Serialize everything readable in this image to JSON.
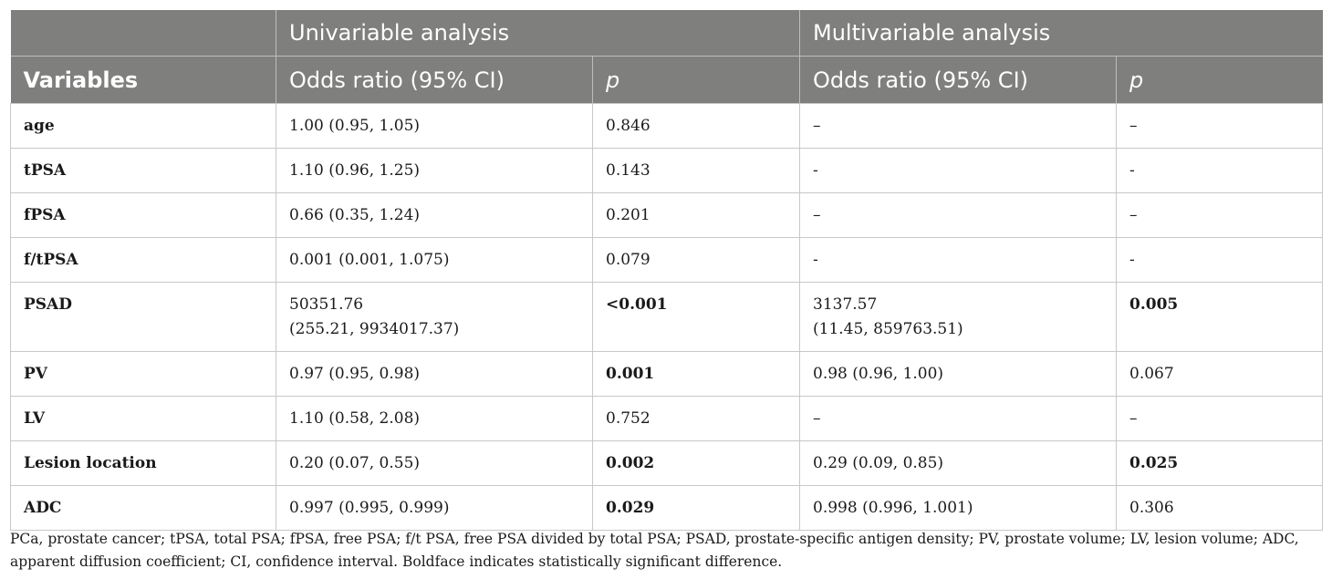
{
  "header": {
    "group1": "Univariable analysis",
    "group2": "Multivariable analysis",
    "variables": "Variables",
    "or1": "Odds ratio (95% CI)",
    "p1": "p",
    "or2": "Odds ratio (95% CI)",
    "p2": "p"
  },
  "rows": [
    {
      "variable": "age",
      "uni_or": "1.00 (0.95, 1.05)",
      "uni_or2": "",
      "uni_p": "0.846",
      "multi_or": "–",
      "multi_or2": "",
      "multi_p": "–"
    },
    {
      "variable": "tPSA",
      "uni_or": "1.10 (0.96, 1.25)",
      "uni_or2": "",
      "uni_p": "0.143",
      "multi_or": "-",
      "multi_or2": "",
      "multi_p": "-"
    },
    {
      "variable": "fPSA",
      "uni_or": "0.66 (0.35, 1.24)",
      "uni_or2": "",
      "uni_p": "0.201",
      "multi_or": "–",
      "multi_or2": "",
      "multi_p": "–"
    },
    {
      "variable": "f/tPSA",
      "uni_or": "0.001 (0.001, 1.075)",
      "uni_or2": "",
      "uni_p": "0.079",
      "multi_or": "-",
      "multi_or2": "",
      "multi_p": "-"
    },
    {
      "variable": "PSAD",
      "uni_or": "50351.76",
      "uni_or2": "(255.21, 9934017.37)",
      "uni_p": "<0.001",
      "multi_or": "3137.57",
      "multi_or2": "(11.45, 859763.51)",
      "multi_p": "0.005"
    },
    {
      "variable": "PV",
      "uni_or": "0.97 (0.95, 0.98)",
      "uni_or2": "",
      "uni_p": "0.001",
      "multi_or": "0.98 (0.96, 1.00)",
      "multi_or2": "",
      "multi_p": "0.067"
    },
    {
      "variable": "LV",
      "uni_or": "1.10 (0.58, 2.08)",
      "uni_or2": "",
      "uni_p": "0.752",
      "multi_or": "–",
      "multi_or2": "",
      "multi_p": "–"
    },
    {
      "variable": "Lesion location",
      "uni_or": "0.20 (0.07, 0.55)",
      "uni_or2": "",
      "uni_p": "0.002",
      "multi_or": "0.29 (0.09, 0.85)",
      "multi_or2": "",
      "multi_p": "0.025"
    },
    {
      "variable": "ADC",
      "uni_or": "0.997 (0.995, 0.999)",
      "uni_or2": "",
      "uni_p": "0.029",
      "multi_or": "0.998 (0.996, 1.001)",
      "multi_or2": "",
      "multi_p": "0.306"
    }
  ],
  "footnote": "PCa, prostate cancer; tPSA, total PSA; fPSA, free PSA; f/t PSA, free PSA divided by total PSA; PSAD, prostate-specific antigen density; PV, prostate volume; LV, lesion volume; ADC, apparent diffusion coefficient; CI, confidence interval. Boldface indicates statistically significant difference."
}
